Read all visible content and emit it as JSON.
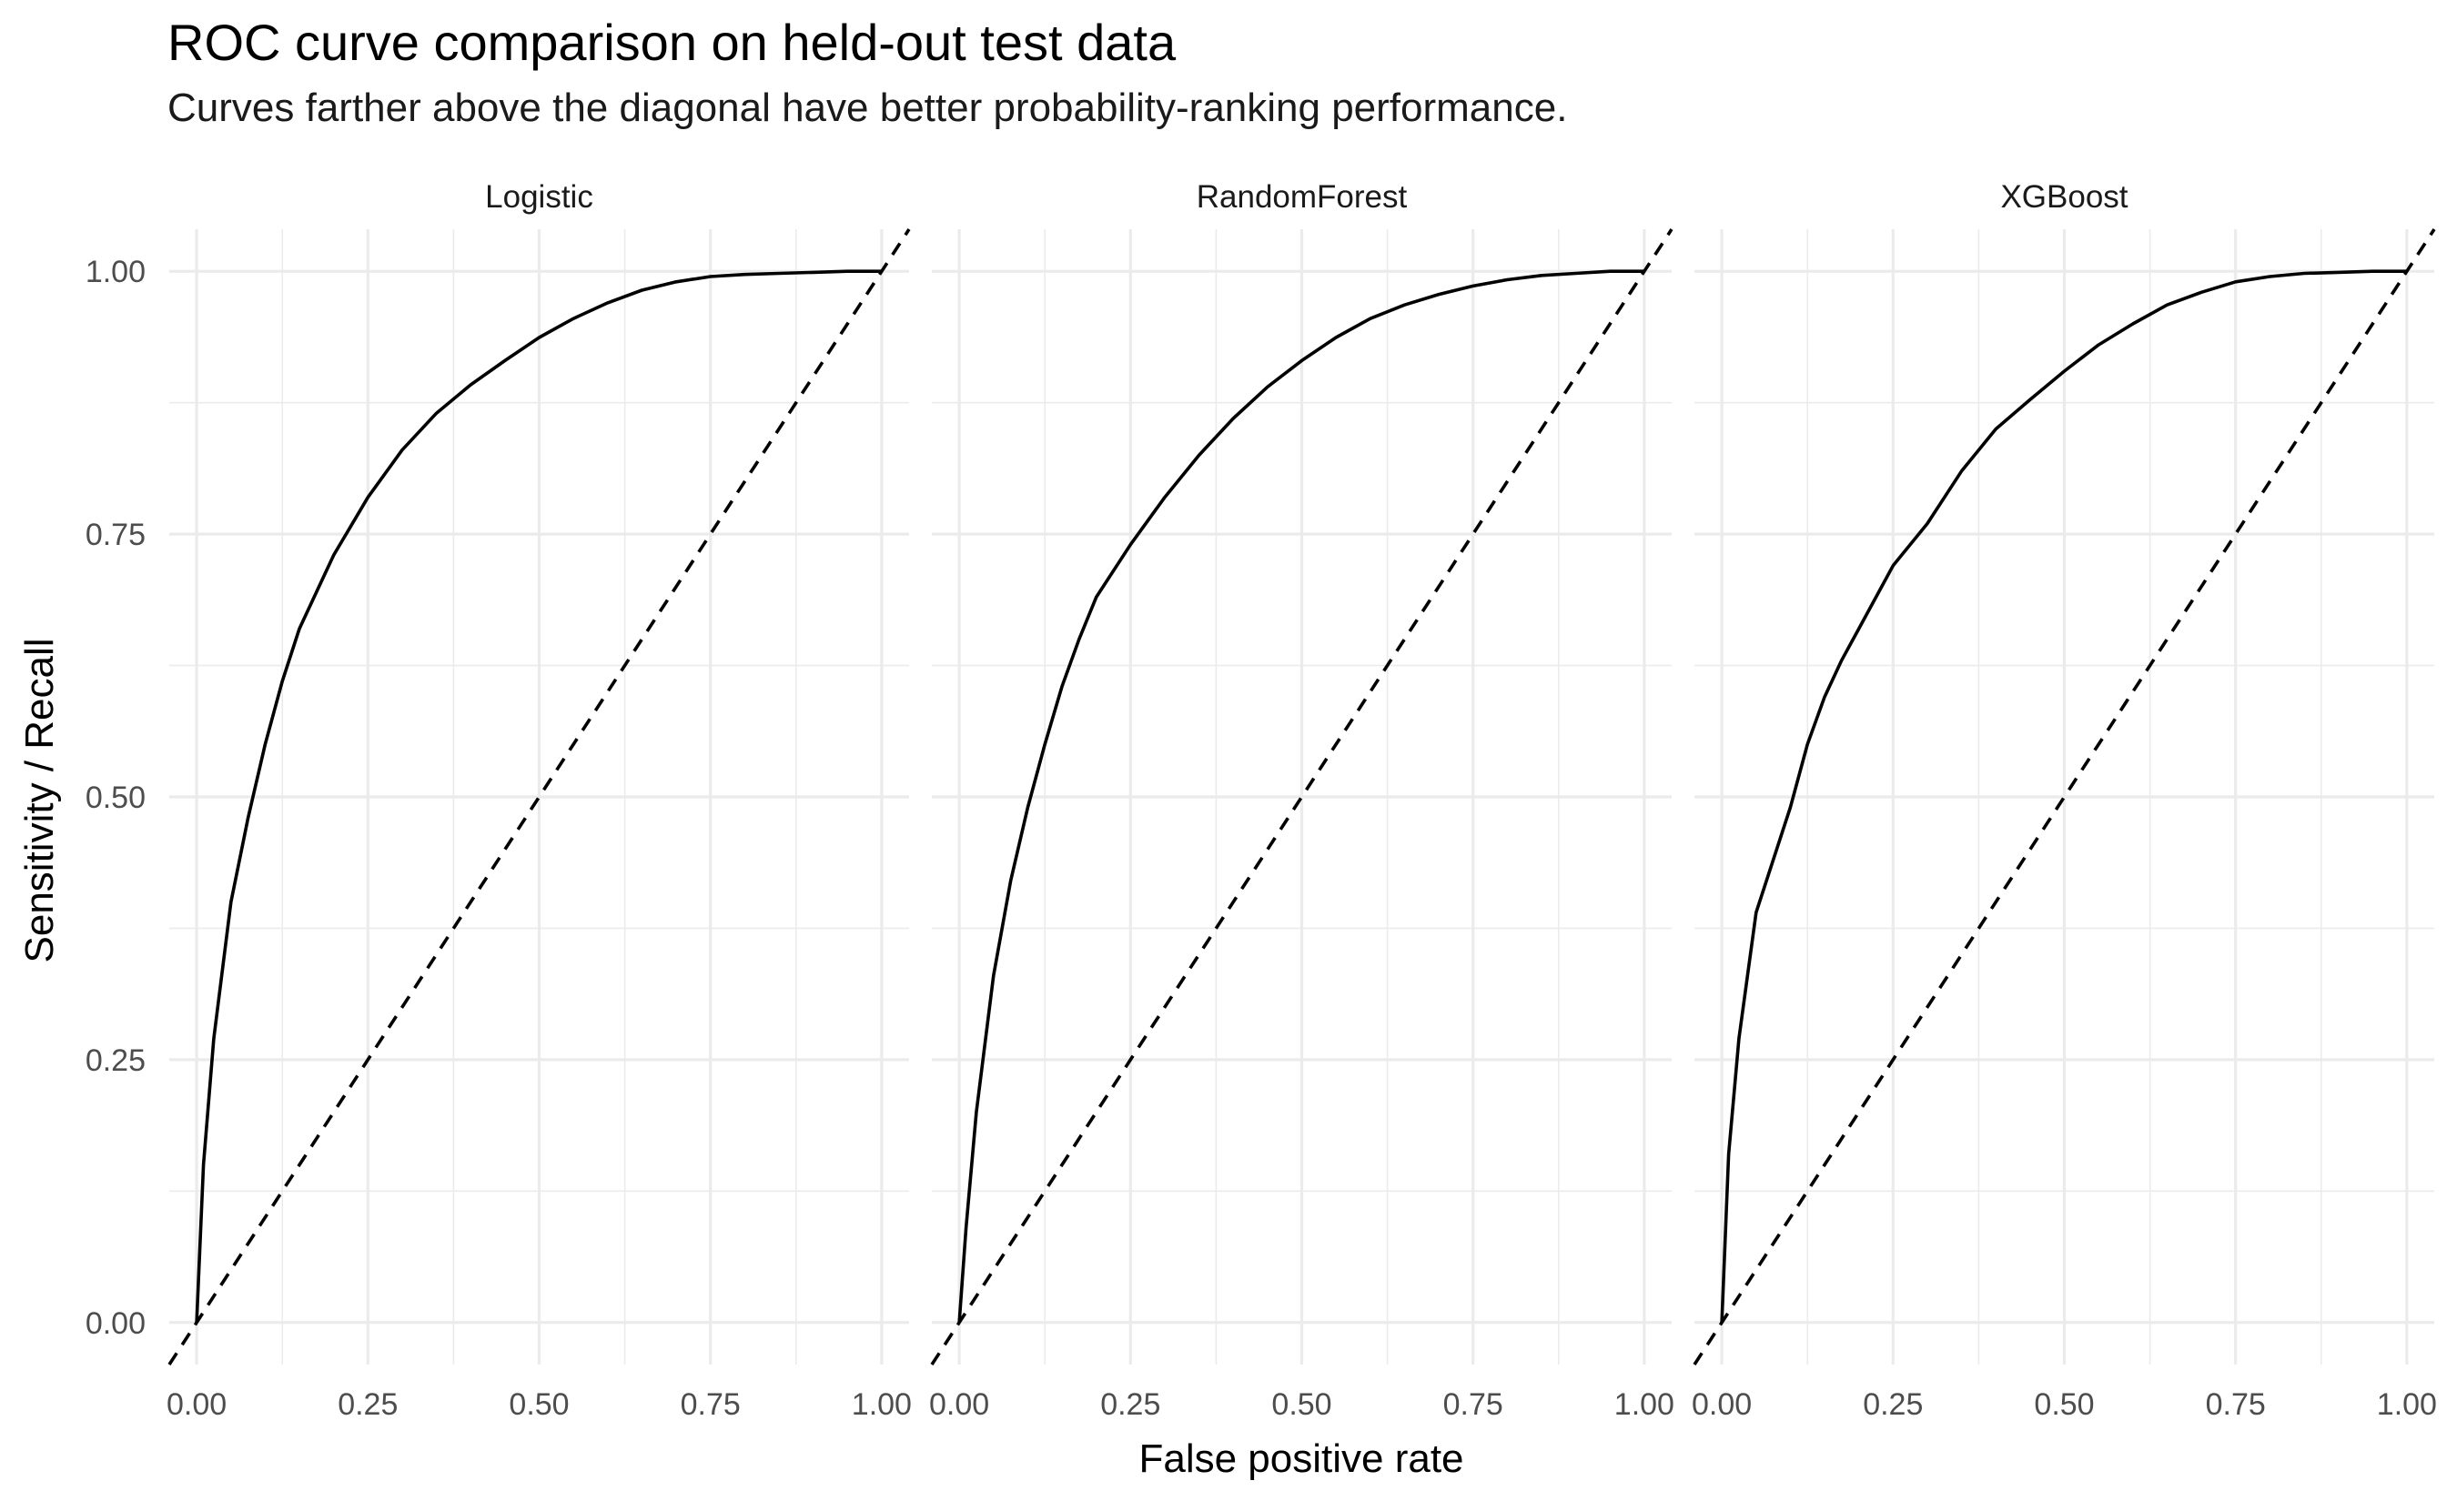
{
  "chart_data": {
    "type": "line",
    "title": "ROC curve comparison on held-out test data",
    "subtitle": "Curves farther above the diagonal have better probability-ranking performance.",
    "xlabel": "False positive rate",
    "ylabel": "Sensitivity / Recall",
    "xlim": [
      -0.04,
      1.04
    ],
    "ylim": [
      -0.04,
      1.04
    ],
    "x_ticks": [
      "0.00",
      "0.25",
      "0.50",
      "0.75",
      "1.00"
    ],
    "y_ticks": [
      "0.00",
      "0.25",
      "0.50",
      "0.75",
      "1.00"
    ],
    "grid": true,
    "reference_line": "dashed diagonal y = x",
    "line_color": "#000000",
    "grid_color": "#ebebeb",
    "facets": [
      {
        "label": "Logistic",
        "x": [
          0,
          0.01,
          0.025,
          0.05,
          0.075,
          0.1,
          0.125,
          0.15,
          0.175,
          0.2,
          0.25,
          0.3,
          0.35,
          0.4,
          0.45,
          0.5,
          0.55,
          0.6,
          0.65,
          0.7,
          0.75,
          0.8,
          0.85,
          0.9,
          0.95,
          1.0
        ],
        "y": [
          0,
          0.15,
          0.27,
          0.4,
          0.48,
          0.55,
          0.61,
          0.66,
          0.695,
          0.73,
          0.785,
          0.83,
          0.865,
          0.892,
          0.915,
          0.937,
          0.955,
          0.97,
          0.982,
          0.99,
          0.995,
          0.997,
          0.998,
          0.999,
          1.0,
          1.0
        ]
      },
      {
        "label": "RandomForest",
        "x": [
          0,
          0.01,
          0.025,
          0.05,
          0.075,
          0.1,
          0.125,
          0.15,
          0.175,
          0.2,
          0.25,
          0.3,
          0.35,
          0.4,
          0.45,
          0.5,
          0.55,
          0.6,
          0.65,
          0.7,
          0.75,
          0.8,
          0.85,
          0.9,
          0.95,
          1.0
        ],
        "y": [
          0,
          0.09,
          0.2,
          0.33,
          0.42,
          0.49,
          0.55,
          0.605,
          0.65,
          0.69,
          0.74,
          0.785,
          0.825,
          0.86,
          0.89,
          0.915,
          0.937,
          0.955,
          0.968,
          0.978,
          0.986,
          0.992,
          0.996,
          0.998,
          1.0,
          1.0
        ]
      },
      {
        "label": "XGBoost",
        "x": [
          0,
          0.01,
          0.025,
          0.05,
          0.075,
          0.1,
          0.125,
          0.15,
          0.175,
          0.2,
          0.25,
          0.3,
          0.35,
          0.4,
          0.45,
          0.5,
          0.55,
          0.6,
          0.65,
          0.7,
          0.75,
          0.8,
          0.85,
          0.9,
          0.95,
          1.0
        ],
        "y": [
          0,
          0.16,
          0.27,
          0.39,
          0.44,
          0.49,
          0.55,
          0.595,
          0.63,
          0.66,
          0.72,
          0.76,
          0.81,
          0.85,
          0.878,
          0.905,
          0.93,
          0.95,
          0.968,
          0.98,
          0.99,
          0.995,
          0.998,
          0.999,
          1.0,
          1.0
        ]
      }
    ]
  }
}
